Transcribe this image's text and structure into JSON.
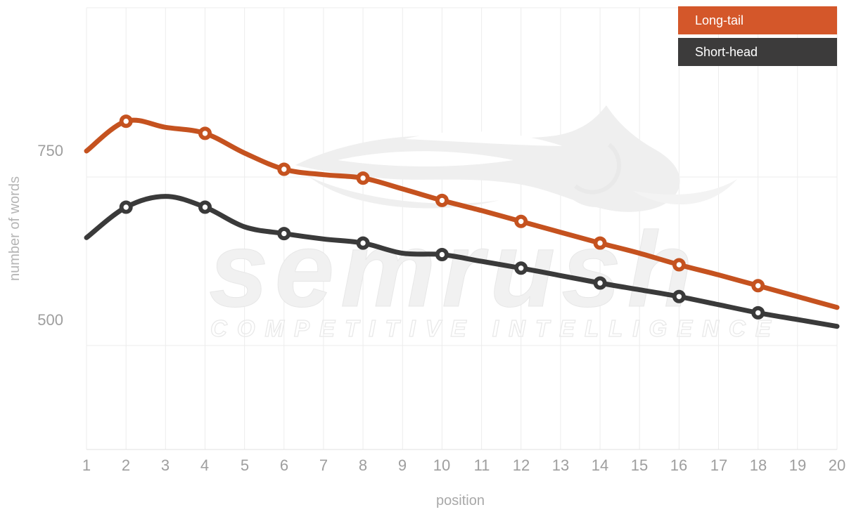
{
  "chart_data": {
    "type": "line",
    "title": "",
    "xlabel": "position",
    "ylabel": "number of words",
    "x": [
      1,
      2,
      3,
      4,
      5,
      6,
      7,
      8,
      9,
      10,
      11,
      12,
      13,
      14,
      15,
      16,
      17,
      18,
      19,
      20
    ],
    "y_ticks": [
      750,
      500
    ],
    "y_axis_approx_range": [
      310,
      960
    ],
    "grid": true,
    "legend_position": "top-right-inside",
    "marker_ring_positions": [
      2,
      4,
      6,
      8,
      10,
      12,
      14,
      16,
      18
    ],
    "series": [
      {
        "name": "Long-tail",
        "color": "#c5521f",
        "values": [
          750,
          794,
          785,
          776,
          747,
          723,
          715,
          710,
          694,
          677,
          662,
          646,
          630,
          614,
          599,
          582,
          567,
          551,
          535,
          519
        ]
      },
      {
        "name": "Short-head",
        "color": "#3a3a3a",
        "values": [
          622,
          667,
          683,
          667,
          638,
          628,
          620,
          614,
          599,
          597,
          587,
          577,
          566,
          555,
          545,
          535,
          523,
          511,
          501,
          491
        ]
      }
    ]
  },
  "legend": {
    "items": [
      {
        "label": "Long-tail",
        "color": "#d4572a"
      },
      {
        "label": "Short-head",
        "color": "#3c3b3b"
      }
    ]
  },
  "watermark": {
    "brand": "semrush",
    "tagline": "COMPETITIVE INTELLIGENCE"
  },
  "colors": {
    "background": "#ffffff",
    "gridline": "#ececec",
    "axis_line": "#e2e2e2",
    "tick_text": "#9e9e9e",
    "x_axis_title": "#a8a8a8",
    "y_axis_title": "#b5b5b5",
    "legend_text": "#ffffff",
    "watermark_gray": "#efefef"
  }
}
